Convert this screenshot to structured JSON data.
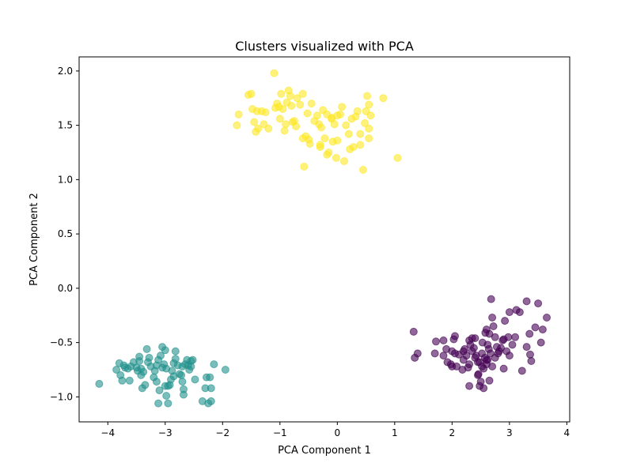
{
  "chart_data": {
    "type": "scatter",
    "title": "Clusters visualized with PCA",
    "xlabel": "PCA Component 1",
    "ylabel": "PCA Component 2",
    "xlim": [
      -4.5,
      4.05
    ],
    "ylim": [
      -1.23,
      2.13
    ],
    "xticks": [
      -4,
      -3,
      -2,
      -1,
      0,
      1,
      2,
      3,
      4
    ],
    "yticks": [
      -1.0,
      -0.5,
      0.0,
      0.5,
      1.0,
      1.5,
      2.0
    ],
    "xtick_labels": [
      "−4",
      "−3",
      "−2",
      "−1",
      "0",
      "1",
      "2",
      "3",
      "4"
    ],
    "ytick_labels": [
      "−1.0",
      "−0.5",
      "0.0",
      "0.5",
      "1.0",
      "1.5",
      "2.0"
    ],
    "grid": false,
    "legend": "none",
    "series": [
      {
        "color": "#440154",
        "points": [
          [
            1.33,
            -0.4
          ],
          [
            1.4,
            -0.6
          ],
          [
            1.35,
            -0.64
          ],
          [
            1.7,
            -0.6
          ],
          [
            1.72,
            -0.49
          ],
          [
            1.85,
            -0.48
          ],
          [
            1.9,
            -0.56
          ],
          [
            1.85,
            -0.62
          ],
          [
            1.92,
            -0.68
          ],
          [
            1.98,
            -0.7
          ],
          [
            2.0,
            -0.58
          ],
          [
            2.03,
            -0.47
          ],
          [
            2.05,
            -0.44
          ],
          [
            2.05,
            -0.6
          ],
          [
            2.08,
            -0.72
          ],
          [
            2.12,
            -0.61
          ],
          [
            2.18,
            -0.75
          ],
          [
            2.2,
            -0.58
          ],
          [
            2.22,
            -0.56
          ],
          [
            2.25,
            -0.62
          ],
          [
            2.28,
            -0.73
          ],
          [
            2.3,
            -0.7
          ],
          [
            2.32,
            -0.52
          ],
          [
            2.3,
            -0.48
          ],
          [
            2.35,
            -0.58
          ],
          [
            2.38,
            -0.55
          ],
          [
            2.4,
            -0.46
          ],
          [
            2.42,
            -0.62
          ],
          [
            2.45,
            -0.68
          ],
          [
            2.46,
            -0.79
          ],
          [
            2.48,
            -0.9
          ],
          [
            2.5,
            -0.86
          ],
          [
            2.52,
            -0.6
          ],
          [
            2.53,
            -0.5
          ],
          [
            2.55,
            -0.74
          ],
          [
            2.57,
            -0.64
          ],
          [
            2.58,
            -0.41
          ],
          [
            2.6,
            -0.38
          ],
          [
            2.62,
            -0.66
          ],
          [
            2.6,
            -0.7
          ],
          [
            2.62,
            -0.52
          ],
          [
            2.64,
            -0.56
          ],
          [
            2.65,
            -0.42
          ],
          [
            2.67,
            -0.6
          ],
          [
            2.68,
            -0.1
          ],
          [
            2.7,
            -0.27
          ],
          [
            2.72,
            -0.35
          ],
          [
            2.75,
            -0.45
          ],
          [
            2.75,
            -0.64
          ],
          [
            2.78,
            -0.54
          ],
          [
            2.8,
            -0.6
          ],
          [
            2.82,
            -0.58
          ],
          [
            2.85,
            -0.55
          ],
          [
            2.88,
            -0.48
          ],
          [
            2.9,
            -0.47
          ],
          [
            2.92,
            -0.3
          ],
          [
            2.95,
            -0.58
          ],
          [
            2.98,
            -0.45
          ],
          [
            3.0,
            -0.22
          ],
          [
            3.05,
            -0.52
          ],
          [
            3.1,
            -0.45
          ],
          [
            3.12,
            -0.2
          ],
          [
            3.18,
            -0.22
          ],
          [
            3.22,
            -0.76
          ],
          [
            3.3,
            -0.12
          ],
          [
            3.35,
            -0.42
          ],
          [
            3.3,
            -0.54
          ],
          [
            3.36,
            -0.61
          ],
          [
            3.38,
            -0.67
          ],
          [
            3.45,
            -0.36
          ],
          [
            3.5,
            -0.14
          ],
          [
            3.55,
            -0.5
          ],
          [
            3.58,
            -0.38
          ],
          [
            3.65,
            -0.27
          ],
          [
            2.3,
            -0.9
          ],
          [
            2.55,
            -0.92
          ],
          [
            2.45,
            -0.8
          ],
          [
            2.65,
            -0.85
          ],
          [
            2.2,
            -0.66
          ],
          [
            2.48,
            -0.68
          ],
          [
            2.0,
            -0.72
          ],
          [
            2.35,
            -0.46
          ],
          [
            2.6,
            -0.66
          ],
          [
            2.52,
            -0.72
          ],
          [
            2.4,
            -0.64
          ],
          [
            2.9,
            -0.74
          ],
          [
            3.0,
            -0.62
          ],
          [
            2.7,
            -0.72
          ]
        ]
      },
      {
        "color": "#21918c",
        "points": [
          [
            -4.15,
            -0.88
          ],
          [
            -3.85,
            -0.75
          ],
          [
            -3.8,
            -0.69
          ],
          [
            -3.78,
            -0.8
          ],
          [
            -3.75,
            -0.85
          ],
          [
            -3.72,
            -0.71
          ],
          [
            -3.7,
            -0.73
          ],
          [
            -3.65,
            -0.74
          ],
          [
            -3.62,
            -0.85
          ],
          [
            -3.55,
            -0.68
          ],
          [
            -3.5,
            -0.73
          ],
          [
            -3.48,
            -0.76
          ],
          [
            -3.45,
            -0.63
          ],
          [
            -3.45,
            -0.67
          ],
          [
            -3.42,
            -0.8
          ],
          [
            -3.4,
            -0.92
          ],
          [
            -3.38,
            -0.77
          ],
          [
            -3.35,
            -0.89
          ],
          [
            -3.32,
            -0.56
          ],
          [
            -3.28,
            -0.64
          ],
          [
            -3.25,
            -0.72
          ],
          [
            -3.2,
            -0.82
          ],
          [
            -3.18,
            -0.76
          ],
          [
            -3.15,
            -0.71
          ],
          [
            -3.12,
            -0.66
          ],
          [
            -3.1,
            -0.94
          ],
          [
            -3.12,
            -1.06
          ],
          [
            -3.08,
            -0.62
          ],
          [
            -3.05,
            -0.54
          ],
          [
            -3.02,
            -0.7
          ],
          [
            -3.0,
            -0.57
          ],
          [
            -2.98,
            -0.74
          ],
          [
            -2.95,
            -0.9
          ],
          [
            -2.95,
            -1.06
          ],
          [
            -2.98,
            -0.99
          ],
          [
            -2.92,
            -0.89
          ],
          [
            -2.88,
            -0.76
          ],
          [
            -2.85,
            -0.81
          ],
          [
            -2.82,
            -0.65
          ],
          [
            -2.82,
            -0.58
          ],
          [
            -2.78,
            -0.71
          ],
          [
            -2.75,
            -0.79
          ],
          [
            -2.72,
            -0.8
          ],
          [
            -2.7,
            -0.86
          ],
          [
            -2.68,
            -0.93
          ],
          [
            -2.68,
            -0.98
          ],
          [
            -2.65,
            -0.7
          ],
          [
            -2.62,
            -0.66
          ],
          [
            -2.6,
            -0.71
          ],
          [
            -2.58,
            -0.75
          ],
          [
            -2.55,
            -0.67
          ],
          [
            -2.52,
            -0.66
          ],
          [
            -2.48,
            -0.84
          ],
          [
            -2.35,
            -1.04
          ],
          [
            -2.3,
            -0.92
          ],
          [
            -2.28,
            -0.82
          ],
          [
            -2.25,
            -1.06
          ],
          [
            -2.22,
            -0.82
          ],
          [
            -2.2,
            -0.92
          ],
          [
            -2.15,
            -0.7
          ],
          [
            -2.2,
            -1.04
          ],
          [
            -1.95,
            -0.75
          ],
          [
            -3.3,
            -0.68
          ],
          [
            -3.6,
            -0.72
          ],
          [
            -2.85,
            -0.69
          ],
          [
            -3.05,
            -0.73
          ],
          [
            -2.55,
            -0.72
          ],
          [
            -2.7,
            -0.72
          ],
          [
            -3.15,
            -0.86
          ],
          [
            -2.9,
            -0.84
          ],
          [
            -3.42,
            -0.74
          ],
          [
            -3.0,
            -0.9
          ]
        ]
      },
      {
        "color": "#fde725",
        "points": [
          [
            -1.75,
            1.5
          ],
          [
            -1.72,
            1.6
          ],
          [
            -1.55,
            1.78
          ],
          [
            -1.5,
            1.79
          ],
          [
            -1.48,
            1.65
          ],
          [
            -1.45,
            1.53
          ],
          [
            -1.42,
            1.44
          ],
          [
            -1.4,
            1.63
          ],
          [
            -1.38,
            1.47
          ],
          [
            -1.32,
            1.63
          ],
          [
            -1.28,
            1.51
          ],
          [
            -1.25,
            1.62
          ],
          [
            -1.2,
            1.47
          ],
          [
            -1.1,
            1.98
          ],
          [
            -1.08,
            1.66
          ],
          [
            -1.05,
            1.7
          ],
          [
            -1.02,
            1.67
          ],
          [
            -1.0,
            1.56
          ],
          [
            -0.98,
            1.79
          ],
          [
            -0.95,
            1.65
          ],
          [
            -0.92,
            1.45
          ],
          [
            -0.9,
            1.51
          ],
          [
            -0.88,
            1.71
          ],
          [
            -0.85,
            1.82
          ],
          [
            -0.82,
            1.77
          ],
          [
            -0.8,
            1.68
          ],
          [
            -0.78,
            1.53
          ],
          [
            -0.75,
            1.54
          ],
          [
            -0.72,
            1.49
          ],
          [
            -0.7,
            1.75
          ],
          [
            -0.65,
            1.69
          ],
          [
            -0.6,
            1.79
          ],
          [
            -0.58,
            1.12
          ],
          [
            -0.55,
            1.4
          ],
          [
            -0.52,
            1.61
          ],
          [
            -0.5,
            1.37
          ],
          [
            -0.48,
            1.33
          ],
          [
            -0.45,
            1.7
          ],
          [
            -0.4,
            1.54
          ],
          [
            -0.35,
            1.59
          ],
          [
            -0.32,
            1.51
          ],
          [
            -0.3,
            1.3
          ],
          [
            -0.28,
            1.48
          ],
          [
            -0.25,
            1.64
          ],
          [
            -0.22,
            1.38
          ],
          [
            -0.18,
            1.6
          ],
          [
            -0.15,
            1.25
          ],
          [
            -0.1,
            1.56
          ],
          [
            -0.08,
            1.35
          ],
          [
            -0.05,
            1.51
          ],
          [
            -0.02,
            1.2
          ],
          [
            0.0,
            1.36
          ],
          [
            0.05,
            1.6
          ],
          [
            0.08,
            1.67
          ],
          [
            0.12,
            1.17
          ],
          [
            0.15,
            1.5
          ],
          [
            0.2,
            1.42
          ],
          [
            0.22,
            1.28
          ],
          [
            0.25,
            1.56
          ],
          [
            0.28,
            1.3
          ],
          [
            0.32,
            1.58
          ],
          [
            0.35,
            1.63
          ],
          [
            0.4,
            1.42
          ],
          [
            0.4,
            1.32
          ],
          [
            0.45,
            1.09
          ],
          [
            0.48,
            1.52
          ],
          [
            0.5,
            1.63
          ],
          [
            0.52,
            1.77
          ],
          [
            0.55,
            1.38
          ],
          [
            0.55,
            1.47
          ],
          [
            0.58,
            1.59
          ],
          [
            0.55,
            1.69
          ],
          [
            0.8,
            1.75
          ],
          [
            1.05,
            1.2
          ],
          [
            -0.18,
            1.23
          ],
          [
            -0.3,
            1.32
          ],
          [
            -0.6,
            1.38
          ],
          [
            -0.1,
            1.57
          ],
          [
            0.0,
            1.59
          ]
        ]
      }
    ]
  }
}
